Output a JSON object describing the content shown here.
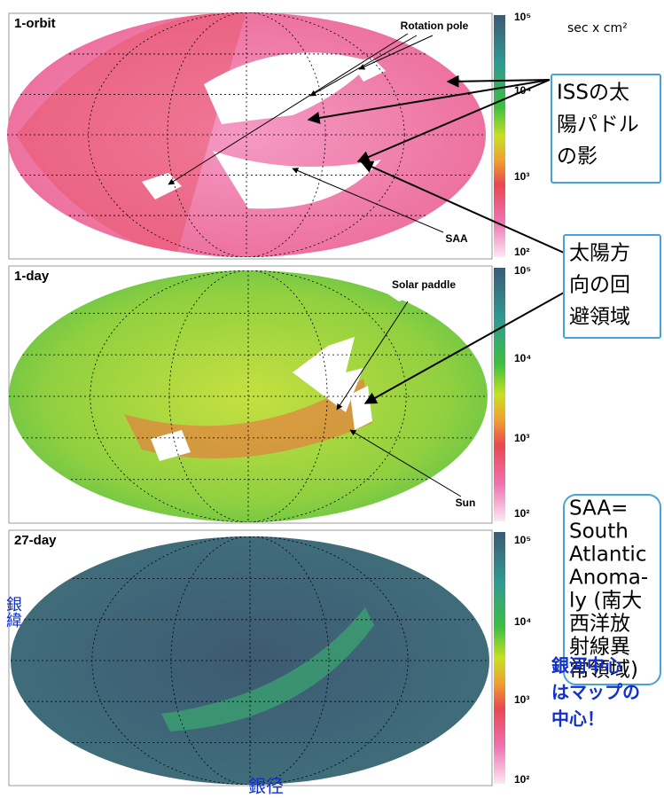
{
  "unit": "sec x cm²",
  "colorbar_ticks": [
    "10⁵",
    "10⁴",
    "10³",
    "10²"
  ],
  "panels": [
    {
      "label": "1-orbit",
      "annotations": [
        "Rotation pole",
        "SAA"
      ]
    },
    {
      "label": "1-day",
      "annotations": [
        "Solar paddle",
        "Sun"
      ]
    },
    {
      "label": "27-day"
    }
  ],
  "callouts": [
    {
      "lines": [
        "ISSの太",
        "陽パドル",
        "の影"
      ]
    },
    {
      "lines": [
        "太陽方",
        "向の回",
        "避領域"
      ]
    },
    {
      "lines": [
        "SAA=",
        "South",
        "Atlantic",
        "Anoma-",
        "ly (南大",
        "西洋放",
        "射線異",
        "常領域)"
      ]
    }
  ],
  "note": [
    "銀河中心",
    "はマップの",
    "中心！"
  ],
  "axis_labels": {
    "y": "銀緯",
    "x": "銀径"
  }
}
